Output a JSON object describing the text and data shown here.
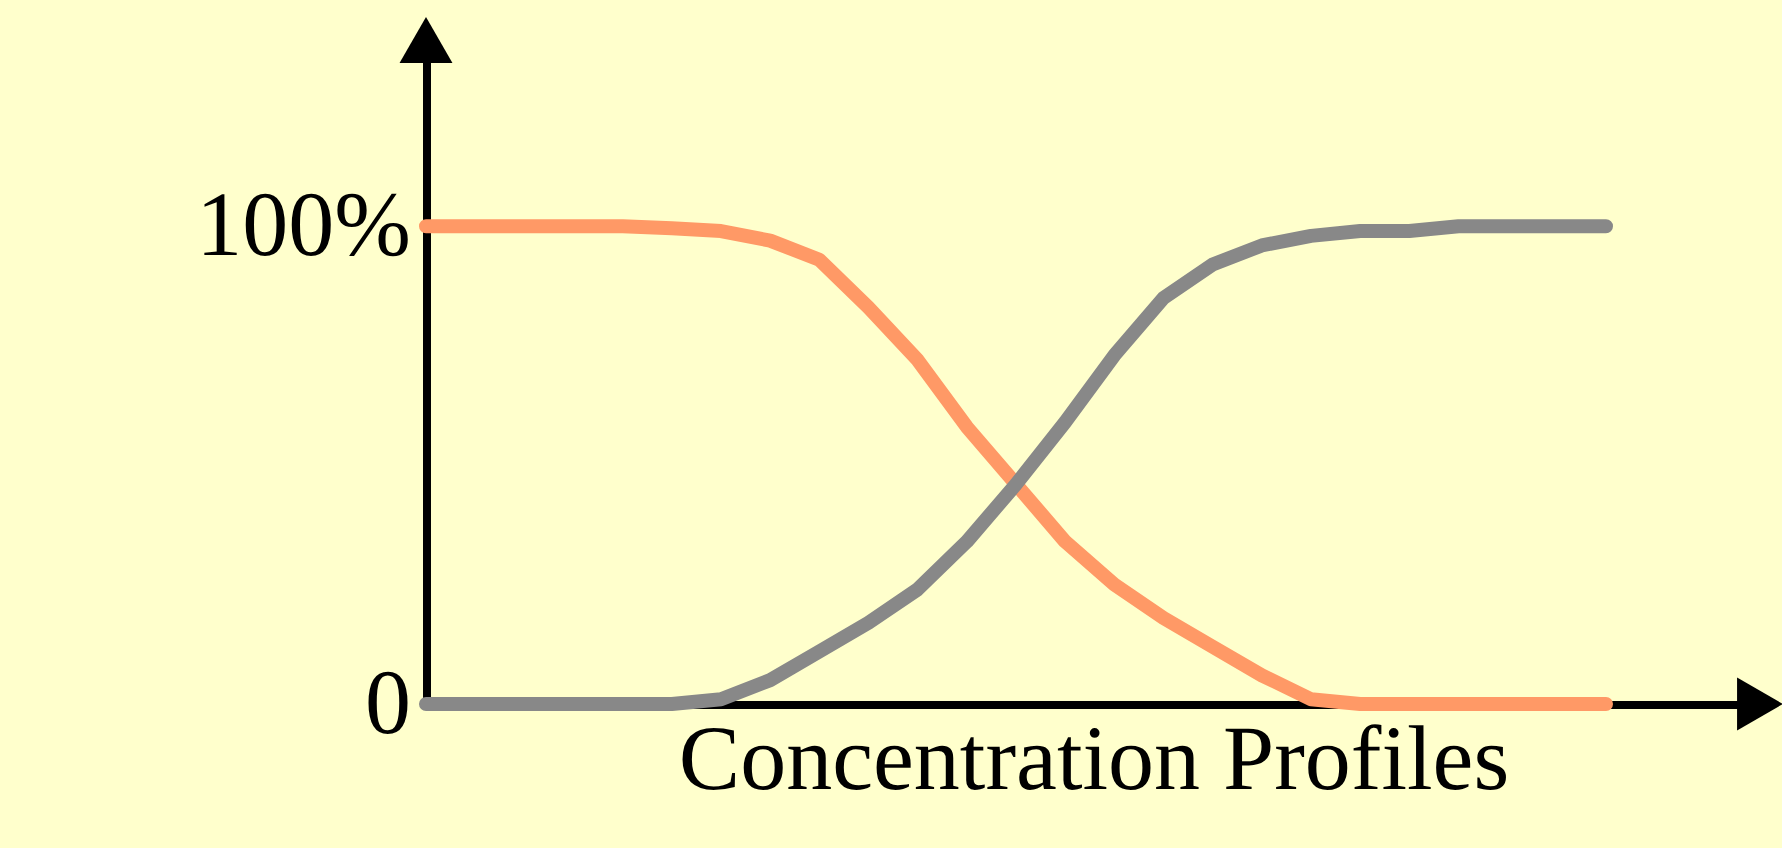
{
  "chart_data": {
    "type": "line",
    "xlabel": "Concentration Profiles",
    "categories": [
      null,
      null,
      null,
      null,
      null,
      null,
      null,
      null,
      null,
      null,
      null,
      null,
      null,
      null,
      null,
      null,
      null,
      null,
      null,
      null,
      null,
      null,
      null,
      null,
      null
    ],
    "series": [
      {
        "color": "#ff9966",
        "values": [
          100,
          100,
          100,
          100,
          100,
          99.6,
          99,
          97,
          93,
          83,
          72,
          58,
          46,
          34,
          25,
          18,
          12,
          6,
          1,
          0,
          0,
          0,
          0,
          0,
          0
        ]
      },
      {
        "color": "#888888",
        "values": [
          0,
          0,
          0,
          0,
          0,
          0,
          1,
          5,
          11,
          17,
          24,
          34,
          46,
          59,
          73,
          85,
          92,
          96,
          98,
          99,
          99,
          100,
          100,
          100,
          100
        ]
      }
    ],
    "ylim": [
      0,
      139
    ],
    "yticks": [
      0,
      {
        "value": 100,
        "label": "100%"
      }
    ],
    "tick_labels": "y",
    "grid": false,
    "legend": false,
    "marker": "none",
    "line_style": "solid"
  }
}
